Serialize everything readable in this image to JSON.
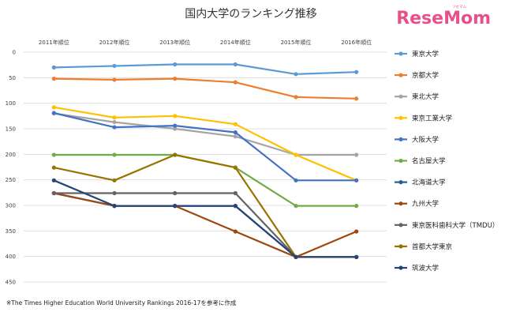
{
  "brand": {
    "logo_text": "ReseMom",
    "logo_sub": "リセマム"
  },
  "footnote": "※The Times Higher Education World University Rankings 2016-17を参考に作成",
  "chart_data": {
    "type": "line",
    "title": "国内大学のランキング推移",
    "categories": [
      "2011年順位",
      "2012年順位",
      "2013年順位",
      "2014年順位",
      "2015年順位",
      "2016年順位"
    ],
    "ylim": [
      0,
      450
    ],
    "yticks": [
      0,
      50,
      100,
      150,
      200,
      250,
      300,
      350,
      400,
      450
    ],
    "y_inverted": true,
    "grid": true,
    "legend": "right",
    "series": [
      {
        "name": "東京大学",
        "color": "#5b9bd5",
        "values": [
          30,
          27,
          24,
          24,
          43,
          39
        ]
      },
      {
        "name": "京都大学",
        "color": "#ed7d31",
        "values": [
          52,
          54,
          52,
          59,
          88,
          91
        ]
      },
      {
        "name": "東北大学",
        "color": "#a5a5a5",
        "values": [
          120,
          137,
          150,
          165,
          201,
          201
        ]
      },
      {
        "name": "東京工業大学",
        "color": "#ffc000",
        "values": [
          108,
          128,
          125,
          141,
          201,
          251
        ]
      },
      {
        "name": "大阪大学",
        "color": "#4472c4",
        "values": [
          119,
          147,
          144,
          157,
          251,
          251
        ]
      },
      {
        "name": "名古屋大学",
        "color": "#70ad47",
        "values": [
          201,
          201,
          201,
          226,
          301,
          301
        ]
      },
      {
        "name": "北海道大学",
        "color": "#255e91",
        "values": [
          276,
          301,
          301,
          301,
          401,
          401
        ]
      },
      {
        "name": "九州大学",
        "color": "#9e480e",
        "values": [
          276,
          301,
          301,
          351,
          401,
          351
        ]
      },
      {
        "name": "東京医科歯科大学（TMDU）",
        "color": "#636363",
        "values": [
          276,
          276,
          276,
          276,
          401,
          401
        ]
      },
      {
        "name": "首都大学東京",
        "color": "#997300",
        "values": [
          226,
          251,
          201,
          226,
          401,
          401
        ]
      },
      {
        "name": "筑波大学",
        "color": "#264478",
        "values": [
          251,
          301,
          301,
          301,
          401,
          401
        ]
      }
    ]
  }
}
